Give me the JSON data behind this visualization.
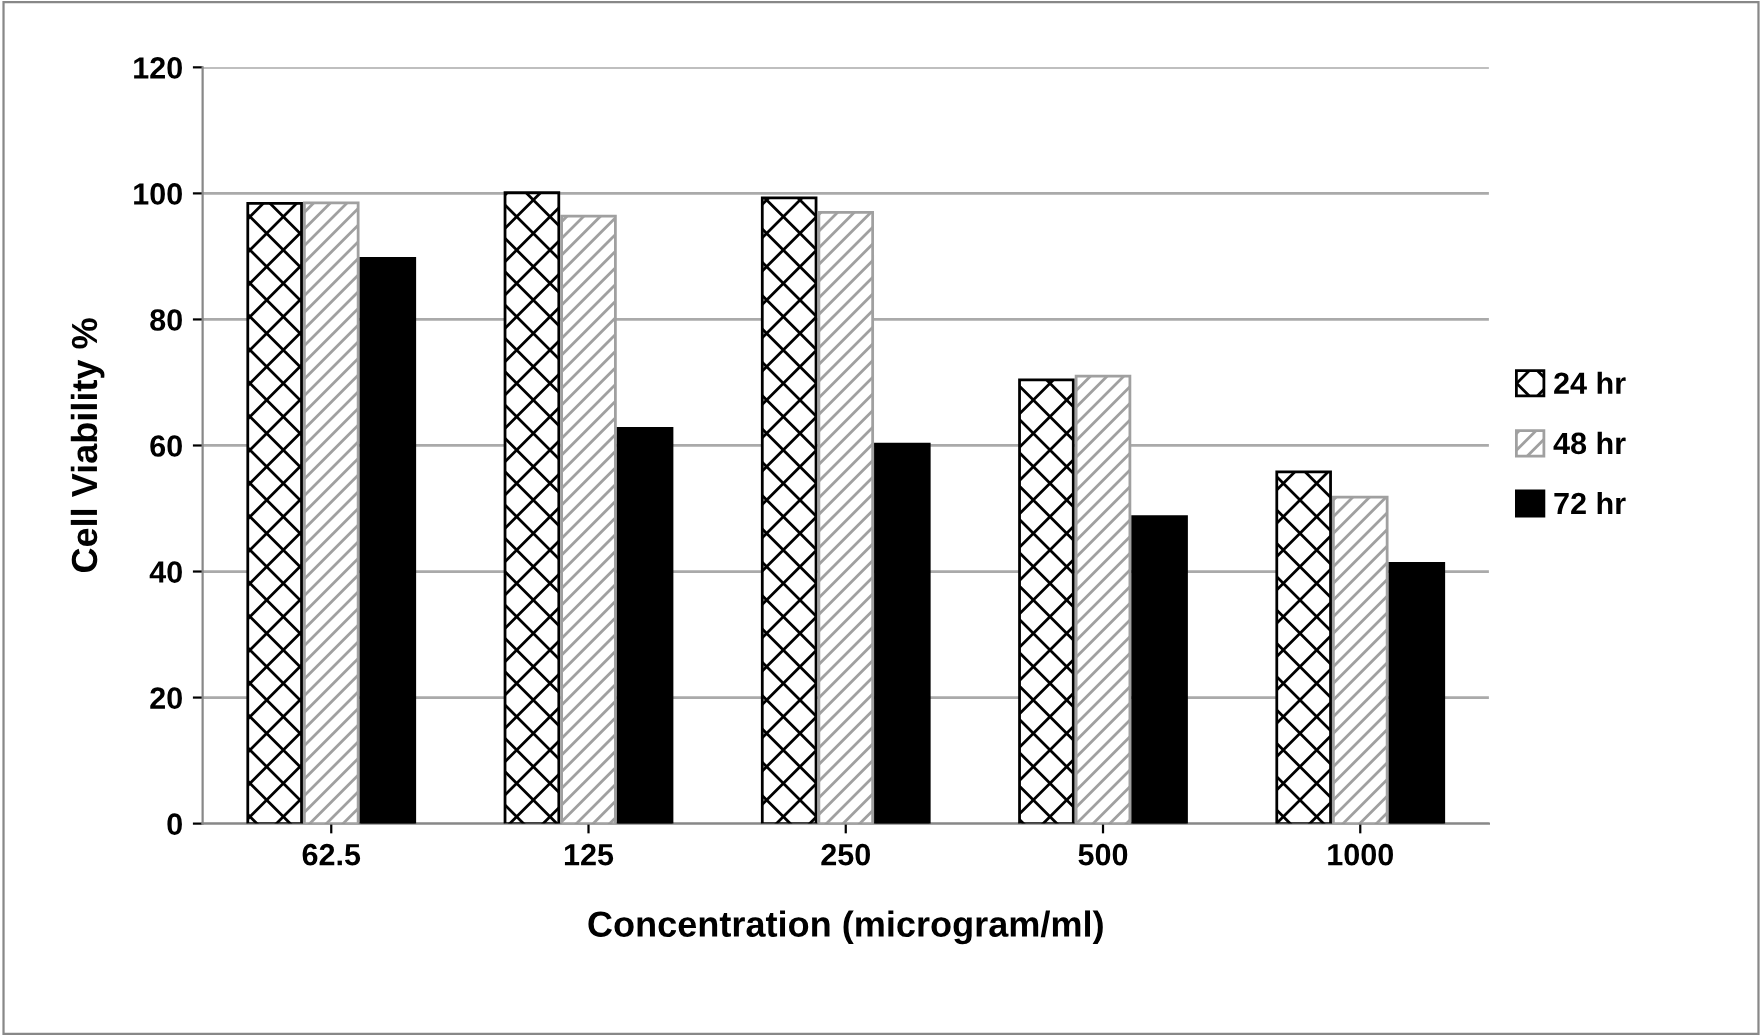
{
  "chart_data": {
    "type": "bar",
    "xlabel": "Concentration (microgram/ml)",
    "ylabel": "Cell Viability %",
    "categories": [
      "62.5",
      "125",
      "250",
      "500",
      "1000"
    ],
    "series": [
      {
        "name": "24 hr",
        "color": "#000000",
        "values": [
          98.4,
          100.1,
          99.3,
          70.4,
          55.8
        ]
      },
      {
        "name": "48 hr",
        "color": "#a0a0a0",
        "values": [
          98.5,
          96.4,
          97,
          71,
          51.8
        ]
      },
      {
        "name": "72 hr",
        "color": "#000000",
        "values": [
          89.7,
          62.7,
          60.2,
          48.7,
          41.3
        ]
      }
    ],
    "ylim": [
      0,
      120
    ],
    "yticks": [
      0,
      20,
      40,
      60,
      80,
      100,
      120
    ],
    "grid": "y",
    "legend": "right"
  }
}
